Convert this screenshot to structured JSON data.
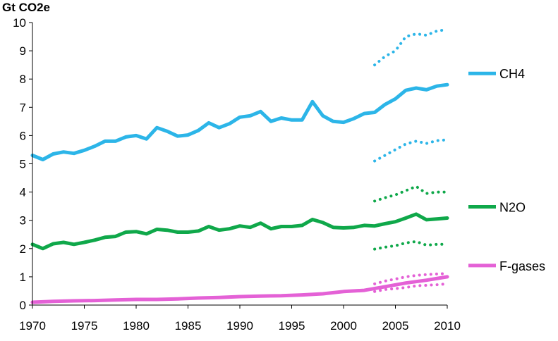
{
  "chart_data": {
    "type": "line",
    "ylabel": "Gt CO2e",
    "xlim": [
      1970,
      2010
    ],
    "ylim": [
      0,
      10
    ],
    "x_ticks": [
      1970,
      1975,
      1980,
      1985,
      1990,
      1995,
      2000,
      2005,
      2010
    ],
    "y_ticks": [
      0,
      1,
      2,
      3,
      4,
      5,
      6,
      7,
      8,
      9,
      10
    ],
    "grid": false,
    "legend_position": "right",
    "series": [
      {
        "name": "CH4",
        "color": "#2cb5e8",
        "x": [
          1970,
          1971,
          1972,
          1973,
          1974,
          1975,
          1976,
          1977,
          1978,
          1979,
          1980,
          1981,
          1982,
          1983,
          1984,
          1985,
          1986,
          1987,
          1988,
          1989,
          1990,
          1991,
          1992,
          1993,
          1994,
          1995,
          1996,
          1997,
          1998,
          1999,
          2000,
          2001,
          2002,
          2003,
          2004,
          2005,
          2006,
          2007,
          2008,
          2009,
          2010
        ],
        "values": [
          5.3,
          5.15,
          5.35,
          5.42,
          5.37,
          5.48,
          5.62,
          5.8,
          5.8,
          5.95,
          6.0,
          5.88,
          6.28,
          6.15,
          5.98,
          6.02,
          6.18,
          6.45,
          6.28,
          6.42,
          6.65,
          6.7,
          6.85,
          6.5,
          6.62,
          6.55,
          6.55,
          7.2,
          6.7,
          6.5,
          6.47,
          6.6,
          6.78,
          6.82,
          7.1,
          7.3,
          7.6,
          7.68,
          7.62,
          7.75,
          7.8
        ]
      },
      {
        "name": "N2O",
        "color": "#0fa84a",
        "x": [
          1970,
          1971,
          1972,
          1973,
          1974,
          1975,
          1976,
          1977,
          1978,
          1979,
          1980,
          1981,
          1982,
          1983,
          1984,
          1985,
          1986,
          1987,
          1988,
          1989,
          1990,
          1991,
          1992,
          1993,
          1994,
          1995,
          1996,
          1997,
          1998,
          1999,
          2000,
          2001,
          2002,
          2003,
          2004,
          2005,
          2006,
          2007,
          2008,
          2009,
          2010
        ],
        "values": [
          2.15,
          2.0,
          2.17,
          2.22,
          2.15,
          2.22,
          2.3,
          2.4,
          2.43,
          2.58,
          2.6,
          2.52,
          2.68,
          2.65,
          2.58,
          2.58,
          2.62,
          2.78,
          2.65,
          2.7,
          2.8,
          2.75,
          2.9,
          2.7,
          2.78,
          2.78,
          2.82,
          3.03,
          2.92,
          2.75,
          2.73,
          2.75,
          2.82,
          2.8,
          2.88,
          2.95,
          3.08,
          3.22,
          3.02,
          3.05,
          3.08
        ]
      },
      {
        "name": "F-gases",
        "color": "#e461d6",
        "x": [
          1970,
          1972,
          1974,
          1976,
          1978,
          1980,
          1982,
          1984,
          1986,
          1988,
          1990,
          1992,
          1994,
          1996,
          1998,
          2000,
          2002,
          2004,
          2006,
          2008,
          2010
        ],
        "values": [
          0.1,
          0.13,
          0.15,
          0.16,
          0.18,
          0.2,
          0.2,
          0.22,
          0.25,
          0.27,
          0.3,
          0.32,
          0.33,
          0.36,
          0.4,
          0.48,
          0.52,
          0.65,
          0.78,
          0.88,
          1.0
        ]
      }
    ],
    "uncertainty_bands": [
      {
        "series": "CH4",
        "bound": "upper",
        "x": [
          2003,
          2004,
          2005,
          2006,
          2007,
          2008,
          2009,
          2010
        ],
        "values": [
          8.5,
          8.8,
          9.0,
          9.5,
          9.6,
          9.55,
          9.7,
          9.75
        ]
      },
      {
        "series": "CH4",
        "bound": "lower",
        "x": [
          2003,
          2004,
          2005,
          2006,
          2007,
          2008,
          2009,
          2010
        ],
        "values": [
          5.1,
          5.3,
          5.5,
          5.7,
          5.8,
          5.72,
          5.82,
          5.85
        ]
      },
      {
        "series": "N2O",
        "bound": "upper",
        "x": [
          2003,
          2004,
          2005,
          2006,
          2007,
          2008,
          2009,
          2010
        ],
        "values": [
          3.68,
          3.8,
          3.9,
          4.05,
          4.2,
          3.95,
          4.0,
          4.0
        ]
      },
      {
        "series": "N2O",
        "bound": "lower",
        "x": [
          2003,
          2004,
          2005,
          2006,
          2007,
          2008,
          2009,
          2010
        ],
        "values": [
          1.98,
          2.05,
          2.1,
          2.2,
          2.25,
          2.12,
          2.15,
          2.15
        ]
      },
      {
        "series": "F-gases",
        "bound": "upper",
        "x": [
          2003,
          2004,
          2005,
          2006,
          2007,
          2008,
          2009,
          2010
        ],
        "values": [
          0.75,
          0.85,
          0.92,
          1.0,
          1.05,
          1.08,
          1.1,
          1.12
        ]
      },
      {
        "series": "F-gases",
        "bound": "lower",
        "x": [
          2003,
          2004,
          2005,
          2006,
          2007,
          2008,
          2009,
          2010
        ],
        "values": [
          0.48,
          0.55,
          0.58,
          0.62,
          0.68,
          0.7,
          0.72,
          0.75
        ]
      }
    ]
  }
}
